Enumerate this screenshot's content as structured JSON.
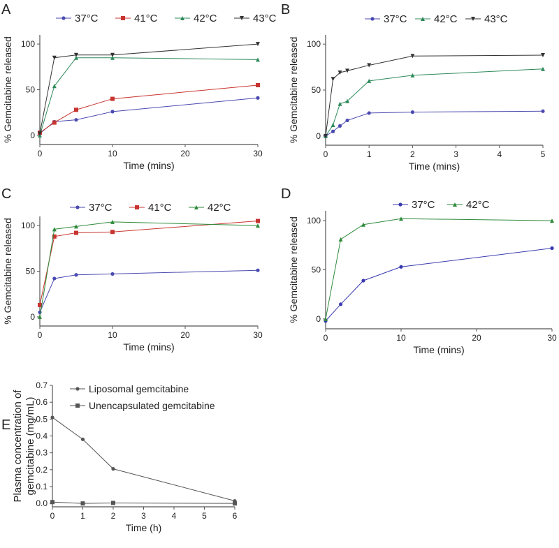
{
  "chart_data": [
    {
      "panel": "A",
      "type": "line",
      "xlabel": "Time (mins)",
      "ylabel": "% Gemcitabine released",
      "xlim": [
        0,
        30
      ],
      "ylim": [
        -10,
        110
      ],
      "xticks": [
        0,
        10,
        20,
        30
      ],
      "yticks": [
        0,
        50,
        100
      ],
      "x": [
        0,
        2,
        5,
        10,
        30
      ],
      "series": [
        {
          "name": "37°C",
          "color": "#4a4ab0",
          "marker": "circle",
          "values": [
            2,
            15,
            17,
            26,
            41
          ]
        },
        {
          "name": "41°C",
          "color": "#c8342f",
          "marker": "square",
          "values": [
            3,
            14,
            28,
            40,
            55
          ]
        },
        {
          "name": "42°C",
          "color": "#2e8a5a",
          "marker": "triangle",
          "values": [
            0,
            54,
            85,
            85,
            83
          ]
        },
        {
          "name": "43°C",
          "color": "#333333",
          "marker": "triangle-down",
          "values": [
            2,
            85,
            88,
            88,
            100
          ]
        }
      ]
    },
    {
      "panel": "B",
      "type": "line",
      "xlabel": "Time (mins)",
      "ylabel": "% Gemcitabine released",
      "xlim": [
        0,
        5
      ],
      "ylim": [
        -10,
        110
      ],
      "xticks": [
        0,
        1,
        2,
        3,
        4,
        5
      ],
      "yticks": [
        0,
        50,
        100
      ],
      "x": [
        0,
        0.17,
        0.33,
        0.5,
        1,
        2,
        5
      ],
      "series": [
        {
          "name": "37°C",
          "color": "#4a4ab0",
          "marker": "circle",
          "values": [
            0,
            5,
            11,
            17,
            25,
            26,
            27
          ]
        },
        {
          "name": "42°C",
          "color": "#2e8a5a",
          "marker": "triangle",
          "values": [
            0,
            12,
            35,
            38,
            60,
            66,
            73
          ]
        },
        {
          "name": "43°C",
          "color": "#333333",
          "marker": "triangle-down",
          "values": [
            0,
            62,
            69,
            71,
            77,
            87,
            88
          ]
        }
      ]
    },
    {
      "panel": "C",
      "type": "line",
      "xlabel": "Time (mins)",
      "ylabel": "% Gemcitabine released",
      "xlim": [
        0,
        30
      ],
      "ylim": [
        -10,
        110
      ],
      "xticks": [
        0,
        10,
        20,
        30
      ],
      "yticks": [
        0,
        50,
        100
      ],
      "x": [
        0,
        2,
        5,
        10,
        30
      ],
      "series": [
        {
          "name": "37°C",
          "color": "#4a4ab0",
          "marker": "circle",
          "values": [
            5,
            42,
            46,
            47,
            51
          ]
        },
        {
          "name": "41°C",
          "color": "#c8342f",
          "marker": "square",
          "values": [
            13,
            88,
            92,
            93,
            105
          ]
        },
        {
          "name": "42°C",
          "color": "#2e8a3a",
          "marker": "triangle",
          "values": [
            0,
            96,
            99,
            104,
            100
          ]
        }
      ]
    },
    {
      "panel": "D",
      "type": "line",
      "xlabel": "Time (mins)",
      "ylabel": "% Gemcitabine released",
      "xlim": [
        0,
        30
      ],
      "ylim": [
        -10,
        110
      ],
      "xticks": [
        0,
        10,
        20,
        30
      ],
      "yticks": [
        0,
        50,
        100
      ],
      "x": [
        0,
        2,
        5,
        10,
        30
      ],
      "series": [
        {
          "name": "37°C",
          "color": "#3a3ab0",
          "marker": "circle",
          "values": [
            -2,
            15,
            39,
            53,
            72
          ]
        },
        {
          "name": "42°C",
          "color": "#2e8a3a",
          "marker": "triangle",
          "values": [
            0,
            81,
            96,
            102,
            100
          ]
        }
      ]
    },
    {
      "panel": "E",
      "type": "line",
      "xlabel": "Time (h)",
      "ylabel": [
        "Plasma concentration of",
        "gemcitabine (mg/mL)"
      ],
      "xlim": [
        0,
        6
      ],
      "ylim": [
        -0.02,
        0.7
      ],
      "xticks": [
        0,
        1,
        2,
        3,
        4,
        5,
        6
      ],
      "yticks": [
        0.0,
        0.1,
        0.2,
        0.3,
        0.4,
        0.5,
        0.6,
        0.7
      ],
      "x": [
        0,
        1,
        2,
        6
      ],
      "series": [
        {
          "name": "Liposomal gemcitabine",
          "color": "#555555",
          "marker": "circle",
          "values": [
            0.51,
            0.38,
            0.205,
            0.015
          ]
        },
        {
          "name": "Unencapsulated gemcitabine",
          "color": "#555555",
          "marker": "square",
          "values": [
            0.008,
            0.0,
            0.003,
            0.0
          ]
        }
      ]
    }
  ]
}
